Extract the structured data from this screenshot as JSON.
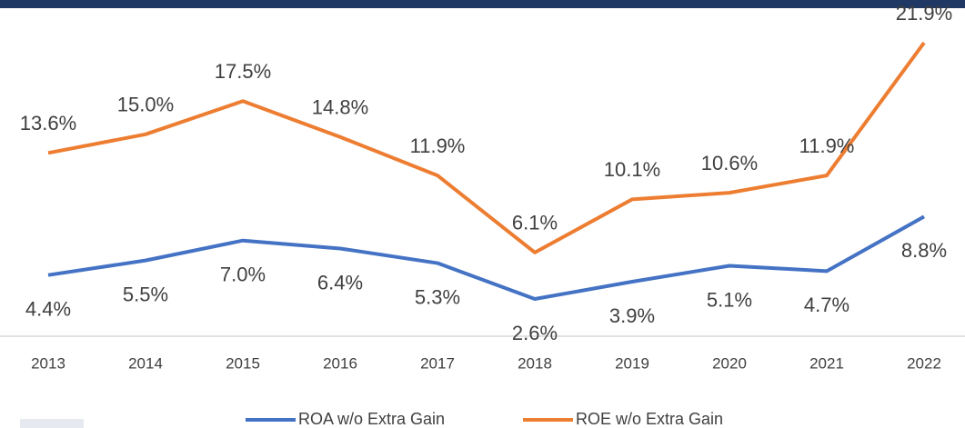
{
  "chart_data": {
    "type": "line",
    "categories": [
      "2013",
      "2014",
      "2015",
      "2016",
      "2017",
      "2018",
      "2019",
      "2020",
      "2021",
      "2022"
    ],
    "series": [
      {
        "name": "ROA w/o Extra Gain",
        "color": "#4472c4",
        "values": [
          4.4,
          5.5,
          7.0,
          6.4,
          5.3,
          2.6,
          3.9,
          5.1,
          4.7,
          8.8
        ],
        "value_labels": [
          "4.4%",
          "5.5%",
          "7.0%",
          "6.4%",
          "5.3%",
          "2.6%",
          "3.9%",
          "5.1%",
          "4.7%",
          "8.8%"
        ]
      },
      {
        "name": "ROE w/o Extra Gain",
        "color": "#ed7d31",
        "values": [
          13.6,
          15.0,
          17.5,
          14.8,
          11.9,
          6.1,
          10.1,
          10.6,
          11.9,
          21.9
        ],
        "value_labels": [
          "13.6%",
          "15.0%",
          "17.5%",
          "14.8%",
          "11.9%",
          "6.1%",
          "10.1%",
          "10.6%",
          "11.9%",
          "21.9%"
        ]
      }
    ]
  }
}
